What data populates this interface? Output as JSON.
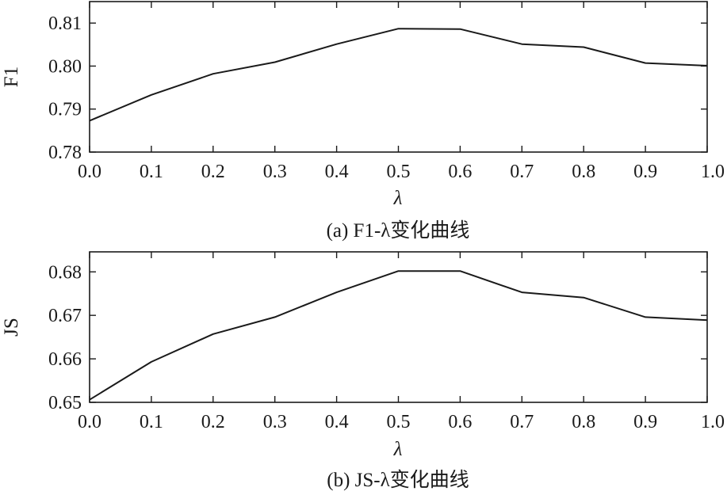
{
  "chart_data": [
    {
      "type": "line",
      "ylabel": "F1",
      "xlabel": "λ",
      "caption": "(a) F1-λ变化曲线",
      "x": [
        0.0,
        0.1,
        0.2,
        0.3,
        0.4,
        0.5,
        0.6,
        0.7,
        0.8,
        0.9,
        1.0
      ],
      "x_tick_labels": [
        "0.0",
        "0.1",
        "0.2",
        "0.3",
        "0.4",
        "0.5",
        "0.6",
        "0.7",
        "0.8",
        "0.9",
        "1.0"
      ],
      "y_tick_labels": [
        "0.78",
        "0.79",
        "0.80",
        "0.81"
      ],
      "y_ticks": [
        0.78,
        0.79,
        0.8,
        0.81
      ],
      "series": [
        {
          "values": [
            0.7873,
            0.7933,
            0.7982,
            0.8009,
            0.8051,
            0.8087,
            0.8086,
            0.8051,
            0.8044,
            0.8007,
            0.8001
          ]
        }
      ],
      "xlim": [
        0.0,
        1.0
      ],
      "ylim": [
        0.78,
        0.815
      ],
      "grid": false
    },
    {
      "type": "line",
      "ylabel": "JS",
      "xlabel": "λ",
      "caption": "(b) JS-λ变化曲线",
      "x": [
        0.0,
        0.1,
        0.2,
        0.3,
        0.4,
        0.5,
        0.6,
        0.7,
        0.8,
        0.9,
        1.0
      ],
      "x_tick_labels": [
        "0.0",
        "0.1",
        "0.2",
        "0.3",
        "0.4",
        "0.5",
        "0.6",
        "0.7",
        "0.8",
        "0.9",
        "1.0"
      ],
      "y_tick_labels": [
        "0.65",
        "0.66",
        "0.67",
        "0.68"
      ],
      "y_ticks": [
        0.65,
        0.66,
        0.67,
        0.68
      ],
      "series": [
        {
          "values": [
            0.6506,
            0.6593,
            0.6657,
            0.6696,
            0.6753,
            0.6802,
            0.6802,
            0.6753,
            0.6741,
            0.6696,
            0.6689
          ]
        }
      ],
      "xlim": [
        0.0,
        1.0
      ],
      "ylim": [
        0.65,
        0.6846
      ],
      "grid": false
    }
  ]
}
